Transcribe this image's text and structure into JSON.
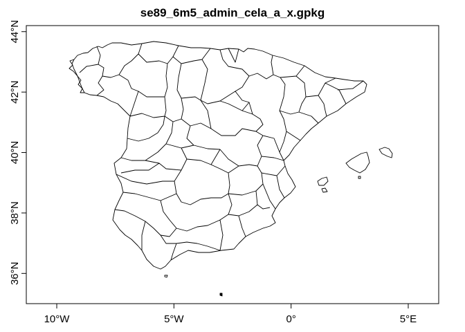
{
  "title": "se89_6m5_admin_cela_a_x.gpkg",
  "axes": {
    "x_ticks": [
      {
        "value": -10,
        "label": "10°W"
      },
      {
        "value": -5,
        "label": "5°W"
      },
      {
        "value": 0,
        "label": "0°"
      },
      {
        "value": 5,
        "label": "5°E"
      }
    ],
    "y_ticks": [
      {
        "value": 36,
        "label": "36°N"
      },
      {
        "value": 38,
        "label": "38°N"
      },
      {
        "value": 40,
        "label": "40°N"
      },
      {
        "value": 42,
        "label": "42°N"
      },
      {
        "value": 44,
        "label": "44°N"
      }
    ],
    "xlim": [
      -11.3,
      6.3
    ],
    "ylim": [
      35.0,
      44.2
    ]
  },
  "colors": {
    "boundary": "#000000",
    "background": "#ffffff"
  }
}
